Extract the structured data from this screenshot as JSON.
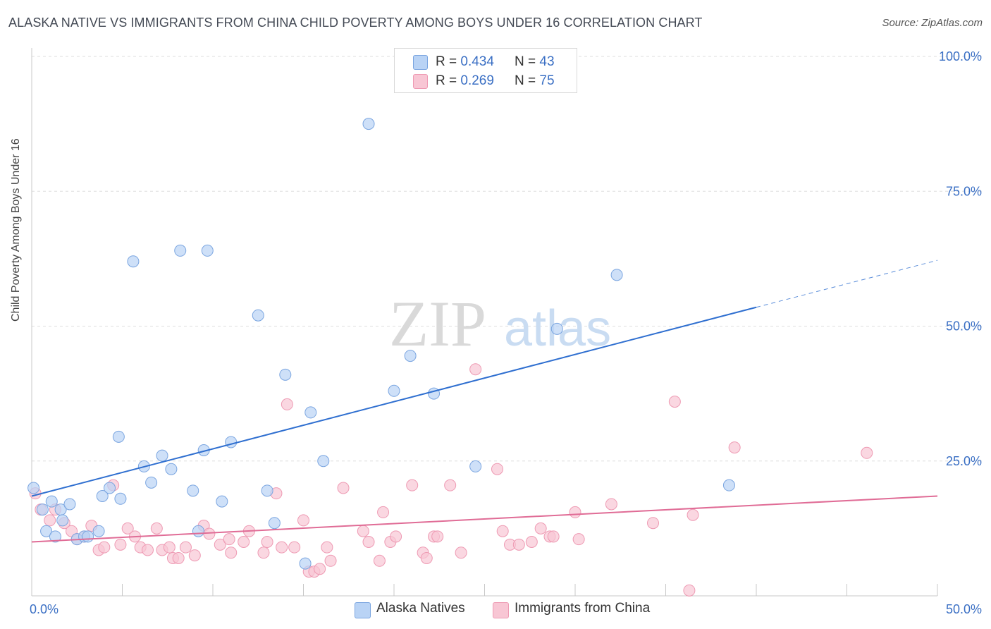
{
  "title": "ALASKA NATIVE VS IMMIGRANTS FROM CHINA CHILD POVERTY AMONG BOYS UNDER 16 CORRELATION CHART",
  "source": "Source: ZipAtlas.com",
  "watermark": {
    "zip": "ZIP",
    "atlas": "atlas"
  },
  "legend": {
    "r_label": "R =",
    "n_label": "N =",
    "series1": {
      "r": "0.434",
      "n": "43"
    },
    "series2": {
      "r": "0.269",
      "n": "75"
    }
  },
  "colors": {
    "blue_fill": "#b9d3f5",
    "blue_stroke": "#7aa5e0",
    "blue_line": "#2f6fd0",
    "pink_fill": "#f8c6d4",
    "pink_stroke": "#ee9ab3",
    "pink_line": "#e06c96",
    "tick_text": "#3a6fc4"
  },
  "chart_data": {
    "type": "scatter",
    "title": "ALASKA NATIVE VS IMMIGRANTS FROM CHINA CHILD POVERTY AMONG BOYS UNDER 16 CORRELATION CHART",
    "xlabel": "",
    "ylabel": "Child Poverty Among Boys Under 16",
    "xlim": [
      0,
      50
    ],
    "ylim": [
      0,
      100
    ],
    "x_tick_labels": [
      "0.0%",
      "50.0%"
    ],
    "y_ticks": [
      25,
      50,
      75,
      100
    ],
    "y_tick_labels": [
      "25.0%",
      "50.0%",
      "75.0%",
      "100.0%"
    ],
    "grid": true,
    "legend_position": "top-center",
    "series": [
      {
        "name": "Alaska Natives",
        "r": 0.434,
        "n": 43,
        "trend": {
          "x0": 0,
          "y0": 18.5,
          "x1": 40,
          "y1": 53.5,
          "dash_to_x": 50,
          "dash_to_y": 62.2
        },
        "points": [
          [
            0.1,
            20
          ],
          [
            0.6,
            16
          ],
          [
            0.8,
            12
          ],
          [
            1.1,
            17.5
          ],
          [
            1.3,
            11
          ],
          [
            1.6,
            16
          ],
          [
            1.7,
            14
          ],
          [
            2.1,
            17
          ],
          [
            2.5,
            10.5
          ],
          [
            2.9,
            11
          ],
          [
            3.1,
            11
          ],
          [
            3.7,
            12
          ],
          [
            3.9,
            18.5
          ],
          [
            4.3,
            20
          ],
          [
            4.9,
            18
          ],
          [
            4.8,
            29.5
          ],
          [
            5.6,
            62
          ],
          [
            6.2,
            24
          ],
          [
            6.6,
            21
          ],
          [
            7.2,
            26
          ],
          [
            7.7,
            23.5
          ],
          [
            8.2,
            64
          ],
          [
            8.9,
            19.5
          ],
          [
            9.2,
            12
          ],
          [
            9.5,
            27
          ],
          [
            9.7,
            64
          ],
          [
            10.5,
            17.5
          ],
          [
            11,
            28.5
          ],
          [
            12.5,
            52
          ],
          [
            13,
            19.5
          ],
          [
            13.4,
            13.5
          ],
          [
            14,
            41
          ],
          [
            15.1,
            6
          ],
          [
            15.4,
            34
          ],
          [
            16.1,
            25
          ],
          [
            18.6,
            87.5
          ],
          [
            20,
            38
          ],
          [
            20.9,
            44.5
          ],
          [
            22.2,
            37.5
          ],
          [
            24.5,
            24
          ],
          [
            29,
            49.5
          ],
          [
            32.3,
            59.5
          ],
          [
            38.5,
            20.5
          ]
        ]
      },
      {
        "name": "Immigrants from China",
        "r": 0.269,
        "n": 75,
        "trend": {
          "x0": 0,
          "y0": 10,
          "x1": 50,
          "y1": 18.5
        },
        "points": [
          [
            0.2,
            19
          ],
          [
            0.5,
            16
          ],
          [
            1,
            14
          ],
          [
            1.3,
            16
          ],
          [
            1.8,
            13.5
          ],
          [
            2.2,
            12
          ],
          [
            2.5,
            10.5
          ],
          [
            2.9,
            11
          ],
          [
            3.3,
            13
          ],
          [
            3.7,
            8.5
          ],
          [
            4,
            9
          ],
          [
            4.5,
            20.5
          ],
          [
            4.9,
            9.5
          ],
          [
            5.3,
            12.5
          ],
          [
            5.7,
            11
          ],
          [
            6,
            9
          ],
          [
            6.4,
            8.5
          ],
          [
            6.9,
            12.5
          ],
          [
            7.2,
            8.5
          ],
          [
            7.6,
            9
          ],
          [
            7.8,
            7
          ],
          [
            8.1,
            7
          ],
          [
            8.5,
            9
          ],
          [
            9,
            7.5
          ],
          [
            9.5,
            13
          ],
          [
            9.8,
            11.5
          ],
          [
            10.4,
            9.5
          ],
          [
            10.9,
            10.5
          ],
          [
            11,
            8
          ],
          [
            11.7,
            10
          ],
          [
            12,
            12
          ],
          [
            12.8,
            8
          ],
          [
            13,
            10
          ],
          [
            13.5,
            19
          ],
          [
            13.8,
            9
          ],
          [
            14.1,
            35.5
          ],
          [
            14.5,
            9
          ],
          [
            15,
            14
          ],
          [
            15.3,
            4.5
          ],
          [
            15.6,
            4.5
          ],
          [
            15.9,
            5
          ],
          [
            16.3,
            9
          ],
          [
            16.5,
            6.5
          ],
          [
            17.2,
            20
          ],
          [
            18.3,
            12
          ],
          [
            18.6,
            10
          ],
          [
            19.2,
            6.5
          ],
          [
            19.4,
            15.5
          ],
          [
            19.8,
            10
          ],
          [
            20.1,
            11
          ],
          [
            21,
            20.5
          ],
          [
            21.6,
            8
          ],
          [
            21.8,
            7
          ],
          [
            22.2,
            11
          ],
          [
            22.4,
            11
          ],
          [
            23.1,
            20.5
          ],
          [
            23.7,
            8
          ],
          [
            24.5,
            42
          ],
          [
            25.7,
            23.5
          ],
          [
            26,
            12
          ],
          [
            26.4,
            9.5
          ],
          [
            26.9,
            9.5
          ],
          [
            27.6,
            10
          ],
          [
            28.1,
            12.5
          ],
          [
            28.6,
            11
          ],
          [
            28.8,
            11
          ],
          [
            30,
            15.5
          ],
          [
            30.2,
            10.5
          ],
          [
            32,
            17
          ],
          [
            34.3,
            13.5
          ],
          [
            35.5,
            36
          ],
          [
            36.3,
            1
          ],
          [
            36.5,
            15
          ],
          [
            38.8,
            27.5
          ],
          [
            46.1,
            26.5
          ]
        ]
      }
    ]
  }
}
